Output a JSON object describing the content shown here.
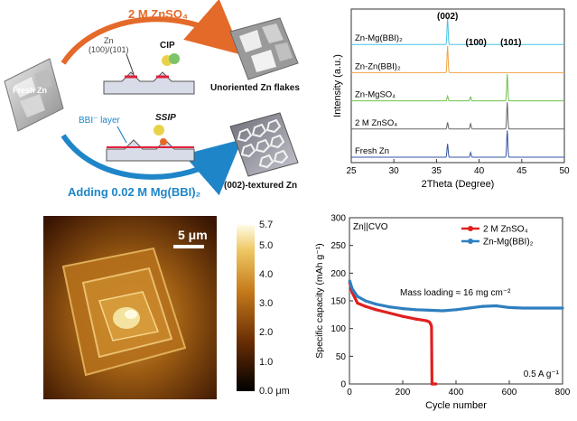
{
  "schematic": {
    "top_condition": "2 M ZnSO₄",
    "bottom_condition": "Adding 0.02 M Mg(BBI)₂",
    "start_label": "Fresh Zn",
    "zn_planes": "Zn\n(100)/(101)",
    "cip_label": "CIP",
    "ssip_label": "SSIP",
    "bbi_layer": "BBI⁻ layer",
    "top_result": "Unoriented Zn flakes",
    "bottom_result": "(002)-textured Zn",
    "colors": {
      "top_arrow": "#e46a2a",
      "bottom_arrow": "#1e86c8"
    }
  },
  "afm": {
    "scale_bar": "5 μm",
    "colorbar_ticks": [
      "5.7",
      "5.0",
      "4.0",
      "3.0",
      "2.0",
      "1.0",
      "0.0 μm"
    ]
  },
  "chart_data": [
    {
      "type": "line",
      "title": "",
      "xlabel": "2Theta (Degree)",
      "ylabel": "Intensity (a.u.)",
      "xlim": [
        25,
        50
      ],
      "xticks": [
        "25",
        "30",
        "35",
        "40",
        "45",
        "50"
      ],
      "peak_labels": [
        {
          "text": "(002)",
          "x": 36.3
        },
        {
          "text": "(100)",
          "x": 39.0
        },
        {
          "text": "(101)",
          "x": 43.3
        }
      ],
      "series": [
        {
          "name": "Zn-Mg(BBI)₂",
          "color": "#47c3e6",
          "peaks": [
            {
              "x": 36.3,
              "h": 1.0
            },
            {
              "x": 39.0,
              "h": 0.0
            },
            {
              "x": 43.3,
              "h": 0.0
            }
          ]
        },
        {
          "name": "Zn-Zn(BBI)₂",
          "color": "#f2a243",
          "peaks": [
            {
              "x": 36.3,
              "h": 1.0
            },
            {
              "x": 39.0,
              "h": 0.0
            },
            {
              "x": 43.3,
              "h": 0.0
            }
          ]
        },
        {
          "name": "Zn-MgSO₄",
          "color": "#6ec24a",
          "peaks": [
            {
              "x": 36.3,
              "h": 0.18
            },
            {
              "x": 39.0,
              "h": 0.15
            },
            {
              "x": 43.3,
              "h": 1.0
            }
          ]
        },
        {
          "name": "2 M ZnSO₄",
          "color": "#666666",
          "peaks": [
            {
              "x": 36.3,
              "h": 0.25
            },
            {
              "x": 39.0,
              "h": 0.2
            },
            {
              "x": 43.3,
              "h": 1.0
            }
          ]
        },
        {
          "name": "Fresh Zn",
          "color": "#3354a4",
          "peaks": [
            {
              "x": 36.3,
              "h": 0.5
            },
            {
              "x": 39.0,
              "h": 0.18
            },
            {
              "x": 43.3,
              "h": 1.0
            }
          ]
        }
      ]
    },
    {
      "type": "line",
      "title": "Zn||CVO",
      "xlabel": "Cycle number",
      "ylabel": "Specific capacity (mAh g⁻¹)",
      "xlim": [
        0,
        800
      ],
      "ylim": [
        0,
        300
      ],
      "xticks": [
        "0",
        "200",
        "400",
        "600",
        "800"
      ],
      "yticks": [
        "0",
        "50",
        "100",
        "150",
        "200",
        "250",
        "300"
      ],
      "annotations": [
        "Mass loading ≈ 16 mg cm⁻²",
        "0.5 A g⁻¹"
      ],
      "series": [
        {
          "name": "2 M ZnSO₄",
          "color": "#e02020",
          "x": [
            1,
            10,
            30,
            60,
            100,
            150,
            200,
            250,
            290,
            300,
            305,
            308,
            310,
            312,
            315,
            320,
            325
          ],
          "y": [
            183,
            165,
            146,
            140,
            134,
            128,
            122,
            117,
            114,
            112,
            108,
            104,
            0,
            0,
            0,
            0,
            0
          ]
        },
        {
          "name": "Zn-Mg(BBI)₂",
          "color": "#2f7fc0",
          "x": [
            1,
            10,
            30,
            60,
            100,
            150,
            200,
            250,
            300,
            350,
            400,
            450,
            500,
            550,
            600,
            650,
            700,
            750,
            800
          ],
          "y": [
            186,
            172,
            158,
            150,
            144,
            139,
            136,
            134,
            133,
            132,
            134,
            137,
            140,
            141,
            138,
            137,
            137,
            137,
            137
          ]
        }
      ]
    }
  ]
}
